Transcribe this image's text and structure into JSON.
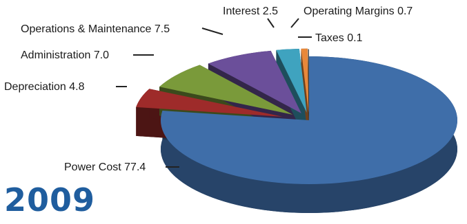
{
  "chart_data": {
    "type": "pie",
    "style": "3d-exploded",
    "slices": [
      {
        "label": "Power Cost 77.4",
        "value": 77.4,
        "color": "#3f6ea9"
      },
      {
        "label": "Depreciation 4.8",
        "value": 4.8,
        "color": "#9e2b2a"
      },
      {
        "label": "Administration 7.0",
        "value": 7.0,
        "color": "#7a9a3a"
      },
      {
        "label": "Operations & Maintenance 7.5",
        "value": 7.5,
        "color": "#6b4f9a"
      },
      {
        "label": "Interest 2.5",
        "value": 2.5,
        "color": "#3fa3bf"
      },
      {
        "label": "Operating Margins 0.7",
        "value": 0.7,
        "color": "#e8883a"
      },
      {
        "label": "Taxes 0.1",
        "value": 0.1,
        "color": "#4a4a4a"
      }
    ]
  },
  "caption": "2009"
}
